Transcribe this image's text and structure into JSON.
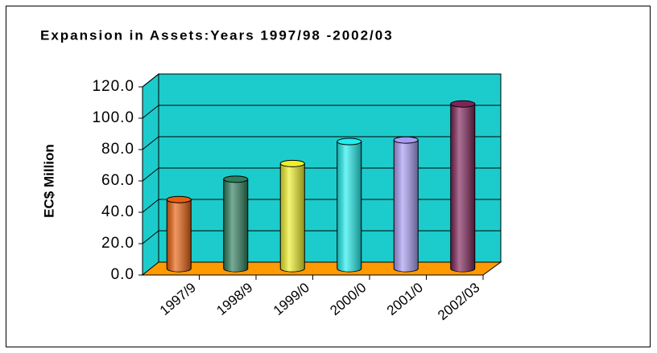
{
  "chart_data": {
    "type": "bar3d",
    "title": "Expansion in Assets:Years 1997/98 -2002/03",
    "ylabel": "EC$ Million",
    "categories": [
      "1997/9",
      "1998/9",
      "1999/0",
      "2000/0",
      "2001/0",
      "2002/03"
    ],
    "values": [
      44,
      57,
      67,
      81,
      82,
      105
    ],
    "colors": [
      "#e8600e",
      "#2f7f5e",
      "#eeee2a",
      "#22eeee",
      "#a89cf2",
      "#7e2458"
    ],
    "ylim": [
      0,
      120
    ],
    "yticks": [
      {
        "value": 0,
        "label": "0.0"
      },
      {
        "value": 20,
        "label": "20.0"
      },
      {
        "value": 40,
        "label": "40.0"
      },
      {
        "value": 60,
        "label": "60.0"
      },
      {
        "value": 80,
        "label": "80.0"
      },
      {
        "value": 100,
        "label": "100.0"
      },
      {
        "value": 120,
        "label": "120.0"
      }
    ],
    "grid": true
  }
}
